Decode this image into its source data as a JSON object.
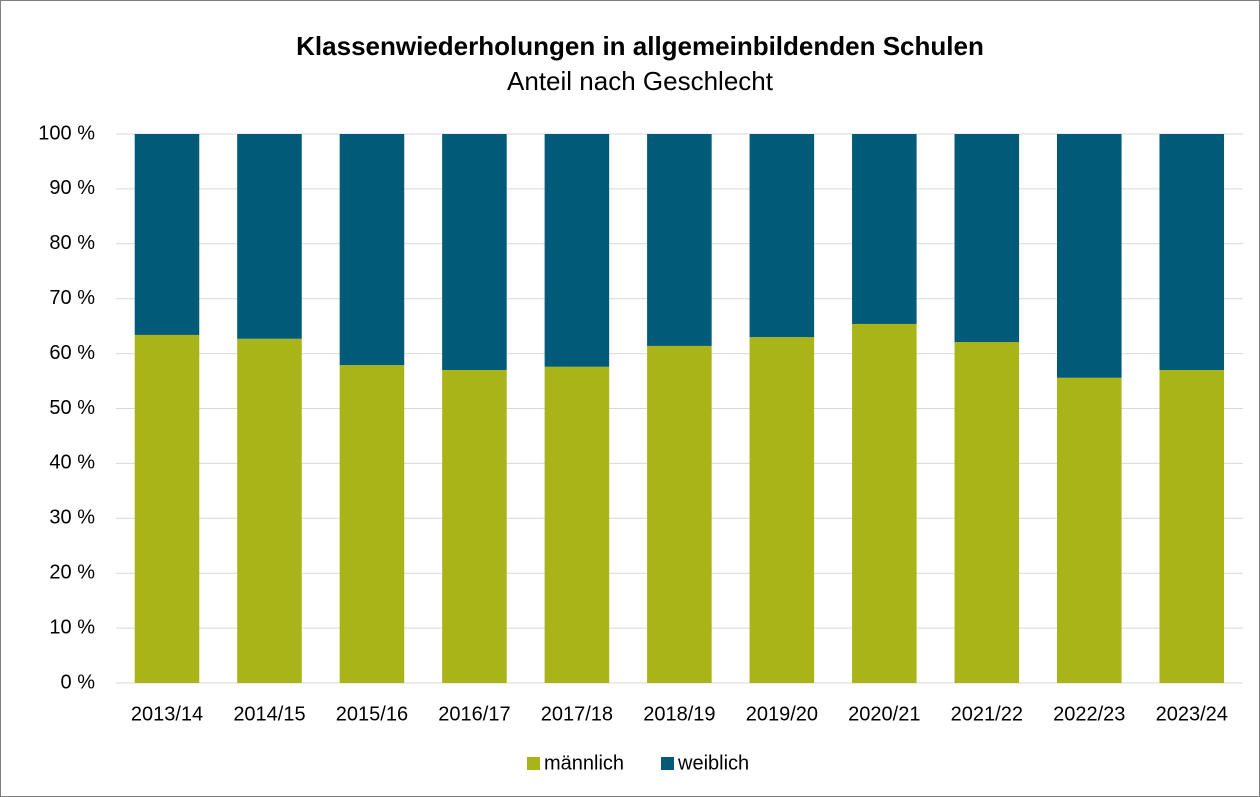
{
  "chart_data": {
    "type": "stacked_bar",
    "title": "Klassenwiederholungen in allgemeinbildenden Schulen",
    "subtitle": "Anteil nach Geschlecht",
    "categories": [
      "2013/14",
      "2014/15",
      "2015/16",
      "2016/17",
      "2017/18",
      "2018/19",
      "2019/20",
      "2020/21",
      "2021/22",
      "2022/23",
      "2023/24"
    ],
    "series": [
      {
        "name": "männlich",
        "color": "#a9b418",
        "values": [
          63.4,
          62.7,
          57.9,
          57.0,
          57.6,
          61.4,
          63.0,
          65.4,
          62.1,
          55.6,
          57.0
        ]
      },
      {
        "name": "weiblich",
        "color": "#005a78",
        "values": [
          36.6,
          37.3,
          42.1,
          43.0,
          42.4,
          38.6,
          37.0,
          34.6,
          37.9,
          44.4,
          43.0
        ]
      }
    ],
    "ylim": [
      0,
      100
    ],
    "yticks": [
      {
        "value": 0,
        "label": "0 %"
      },
      {
        "value": 10,
        "label": "10 %"
      },
      {
        "value": 20,
        "label": "20 %"
      },
      {
        "value": 30,
        "label": "30 %"
      },
      {
        "value": 40,
        "label": "40 %"
      },
      {
        "value": 50,
        "label": "50 %"
      },
      {
        "value": 60,
        "label": "60 %"
      },
      {
        "value": 70,
        "label": "70 %"
      },
      {
        "value": 80,
        "label": "80 %"
      },
      {
        "value": 90,
        "label": "90 %"
      },
      {
        "value": 100,
        "label": "100 %"
      }
    ],
    "grid": true,
    "legend": "bottom"
  }
}
